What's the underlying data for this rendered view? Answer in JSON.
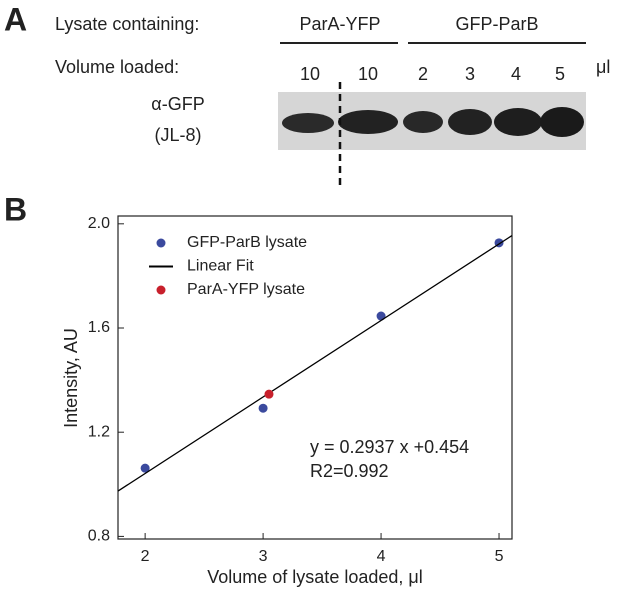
{
  "panel_a": {
    "label": "A",
    "row1_label": "Lysate containing:",
    "groups": [
      "ParA-YFP",
      "GFP-ParB"
    ],
    "row2_label": "Volume loaded:",
    "volumes": [
      "10",
      "10",
      "2",
      "3",
      "4",
      "5"
    ],
    "unit": "μl",
    "antibody": "α-GFP",
    "antibody_clone": "(JL-8)"
  },
  "chart_data": {
    "type": "scatter",
    "panel_label": "B",
    "x_label": "Volume of lysate loaded, μl",
    "y_label": "Intensity, AU",
    "xlim": [
      1.77,
      5.11
    ],
    "ylim": [
      0.79,
      2.03
    ],
    "xticks": [
      2,
      3,
      4,
      5
    ],
    "yticks": [
      {
        "value": 0.8,
        "label": "0.8"
      },
      {
        "value": 1.2,
        "label": "1.2"
      },
      {
        "value": 1.6,
        "label": "1.6"
      },
      {
        "value": 2.0,
        "label": "2.0"
      }
    ],
    "legend": "upper left",
    "series": [
      {
        "name": "GFP-ParB lysate",
        "type": "scatter",
        "color": "#3b4a9e",
        "x": [
          2,
          3,
          4,
          5
        ],
        "values": [
          1.062,
          1.292,
          1.646,
          1.927
        ]
      },
      {
        "name": "Linear Fit",
        "type": "line",
        "color": "#000000",
        "x": [
          1.77,
          5.11
        ],
        "values": [
          0.974,
          1.955
        ]
      },
      {
        "name": "ParA-YFP lysate",
        "type": "scatter",
        "color": "#c8202c",
        "x": [
          3.05
        ],
        "values": [
          1.346
        ]
      }
    ],
    "annotations": [
      "y = 0.2937 x +0.454",
      "R2=0.992"
    ]
  }
}
